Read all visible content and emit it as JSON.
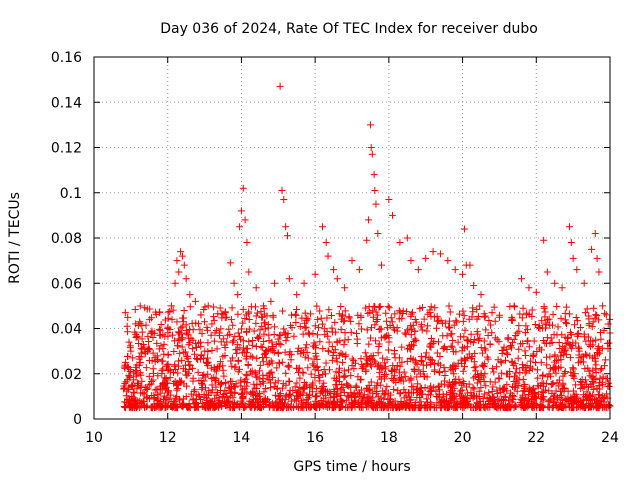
{
  "chart_data": {
    "type": "scatter",
    "title": "Day 036 of 2024, Rate Of TEC Index for receiver dubo",
    "xlabel": "GPS time / hours",
    "ylabel": "ROTI / TECUs",
    "xlim": [
      10,
      24
    ],
    "ylim": [
      0,
      0.16
    ],
    "x_ticks": [
      "10",
      "12",
      "14",
      "16",
      "18",
      "20",
      "22",
      "24"
    ],
    "y_ticks": [
      "0",
      "0.02",
      "0.04",
      "0.06",
      "0.08",
      "0.1",
      "0.12",
      "0.14",
      "0.16"
    ],
    "grid": true,
    "legend": "none",
    "marker": "+",
    "color": "#ff0000",
    "series": [
      {
        "points": [
          [
            10.85,
            0.047
          ],
          [
            10.9,
            0.041
          ],
          [
            10.95,
            0.034
          ],
          [
            11.0,
            0.03
          ],
          [
            11.05,
            0.027
          ],
          [
            11.6,
            0.036
          ],
          [
            11.8,
            0.037
          ],
          [
            11.9,
            0.033
          ],
          [
            12.0,
            0.04
          ],
          [
            12.1,
            0.05
          ],
          [
            12.2,
            0.06
          ],
          [
            12.25,
            0.07
          ],
          [
            12.3,
            0.065
          ],
          [
            12.35,
            0.074
          ],
          [
            12.4,
            0.072
          ],
          [
            12.45,
            0.068
          ],
          [
            12.5,
            0.062
          ],
          [
            12.6,
            0.055
          ],
          [
            12.75,
            0.052
          ],
          [
            12.9,
            0.046
          ],
          [
            13.0,
            0.043
          ],
          [
            13.1,
            0.05
          ],
          [
            13.2,
            0.042
          ],
          [
            13.4,
            0.038
          ],
          [
            13.6,
            0.045
          ],
          [
            13.7,
            0.069
          ],
          [
            13.8,
            0.06
          ],
          [
            13.9,
            0.055
          ],
          [
            13.95,
            0.085
          ],
          [
            14.0,
            0.092
          ],
          [
            14.05,
            0.102
          ],
          [
            14.1,
            0.088
          ],
          [
            14.15,
            0.078
          ],
          [
            14.2,
            0.065
          ],
          [
            14.4,
            0.058
          ],
          [
            14.6,
            0.05
          ],
          [
            14.8,
            0.052
          ],
          [
            14.9,
            0.06
          ],
          [
            15.05,
            0.147
          ],
          [
            15.1,
            0.101
          ],
          [
            15.15,
            0.097
          ],
          [
            15.2,
            0.085
          ],
          [
            15.25,
            0.081
          ],
          [
            15.3,
            0.062
          ],
          [
            15.5,
            0.055
          ],
          [
            15.7,
            0.06
          ],
          [
            16.0,
            0.064
          ],
          [
            16.2,
            0.085
          ],
          [
            16.3,
            0.078
          ],
          [
            16.35,
            0.072
          ],
          [
            16.5,
            0.066
          ],
          [
            16.6,
            0.062
          ],
          [
            16.8,
            0.058
          ],
          [
            17.0,
            0.07
          ],
          [
            17.2,
            0.066
          ],
          [
            17.4,
            0.079
          ],
          [
            17.45,
            0.088
          ],
          [
            17.5,
            0.13
          ],
          [
            17.52,
            0.12
          ],
          [
            17.55,
            0.117
          ],
          [
            17.6,
            0.108
          ],
          [
            17.62,
            0.101
          ],
          [
            17.65,
            0.095
          ],
          [
            17.7,
            0.082
          ],
          [
            17.8,
            0.068
          ],
          [
            18.0,
            0.097
          ],
          [
            18.1,
            0.09
          ],
          [
            18.3,
            0.078
          ],
          [
            18.5,
            0.08
          ],
          [
            18.6,
            0.07
          ],
          [
            18.8,
            0.066
          ],
          [
            19.0,
            0.071
          ],
          [
            19.2,
            0.074
          ],
          [
            19.4,
            0.073
          ],
          [
            19.6,
            0.07
          ],
          [
            19.8,
            0.066
          ],
          [
            20.0,
            0.064
          ],
          [
            20.05,
            0.084
          ],
          [
            20.1,
            0.068
          ],
          [
            20.2,
            0.068
          ],
          [
            20.3,
            0.059
          ],
          [
            20.5,
            0.055
          ],
          [
            20.8,
            0.047
          ],
          [
            21.0,
            0.045
          ],
          [
            21.4,
            0.05
          ],
          [
            21.6,
            0.062
          ],
          [
            21.8,
            0.058
          ],
          [
            22.0,
            0.056
          ],
          [
            22.2,
            0.079
          ],
          [
            22.3,
            0.065
          ],
          [
            22.5,
            0.06
          ],
          [
            22.7,
            0.058
          ],
          [
            22.9,
            0.085
          ],
          [
            22.95,
            0.078
          ],
          [
            23.0,
            0.071
          ],
          [
            23.1,
            0.066
          ],
          [
            23.3,
            0.06
          ],
          [
            23.5,
            0.075
          ],
          [
            23.6,
            0.082
          ],
          [
            23.65,
            0.071
          ],
          [
            23.7,
            0.065
          ],
          [
            23.8,
            0.05
          ],
          [
            23.9,
            0.046
          ],
          [
            23.95,
            0.042
          ],
          [
            24.0,
            0.038
          ]
        ]
      }
    ]
  }
}
